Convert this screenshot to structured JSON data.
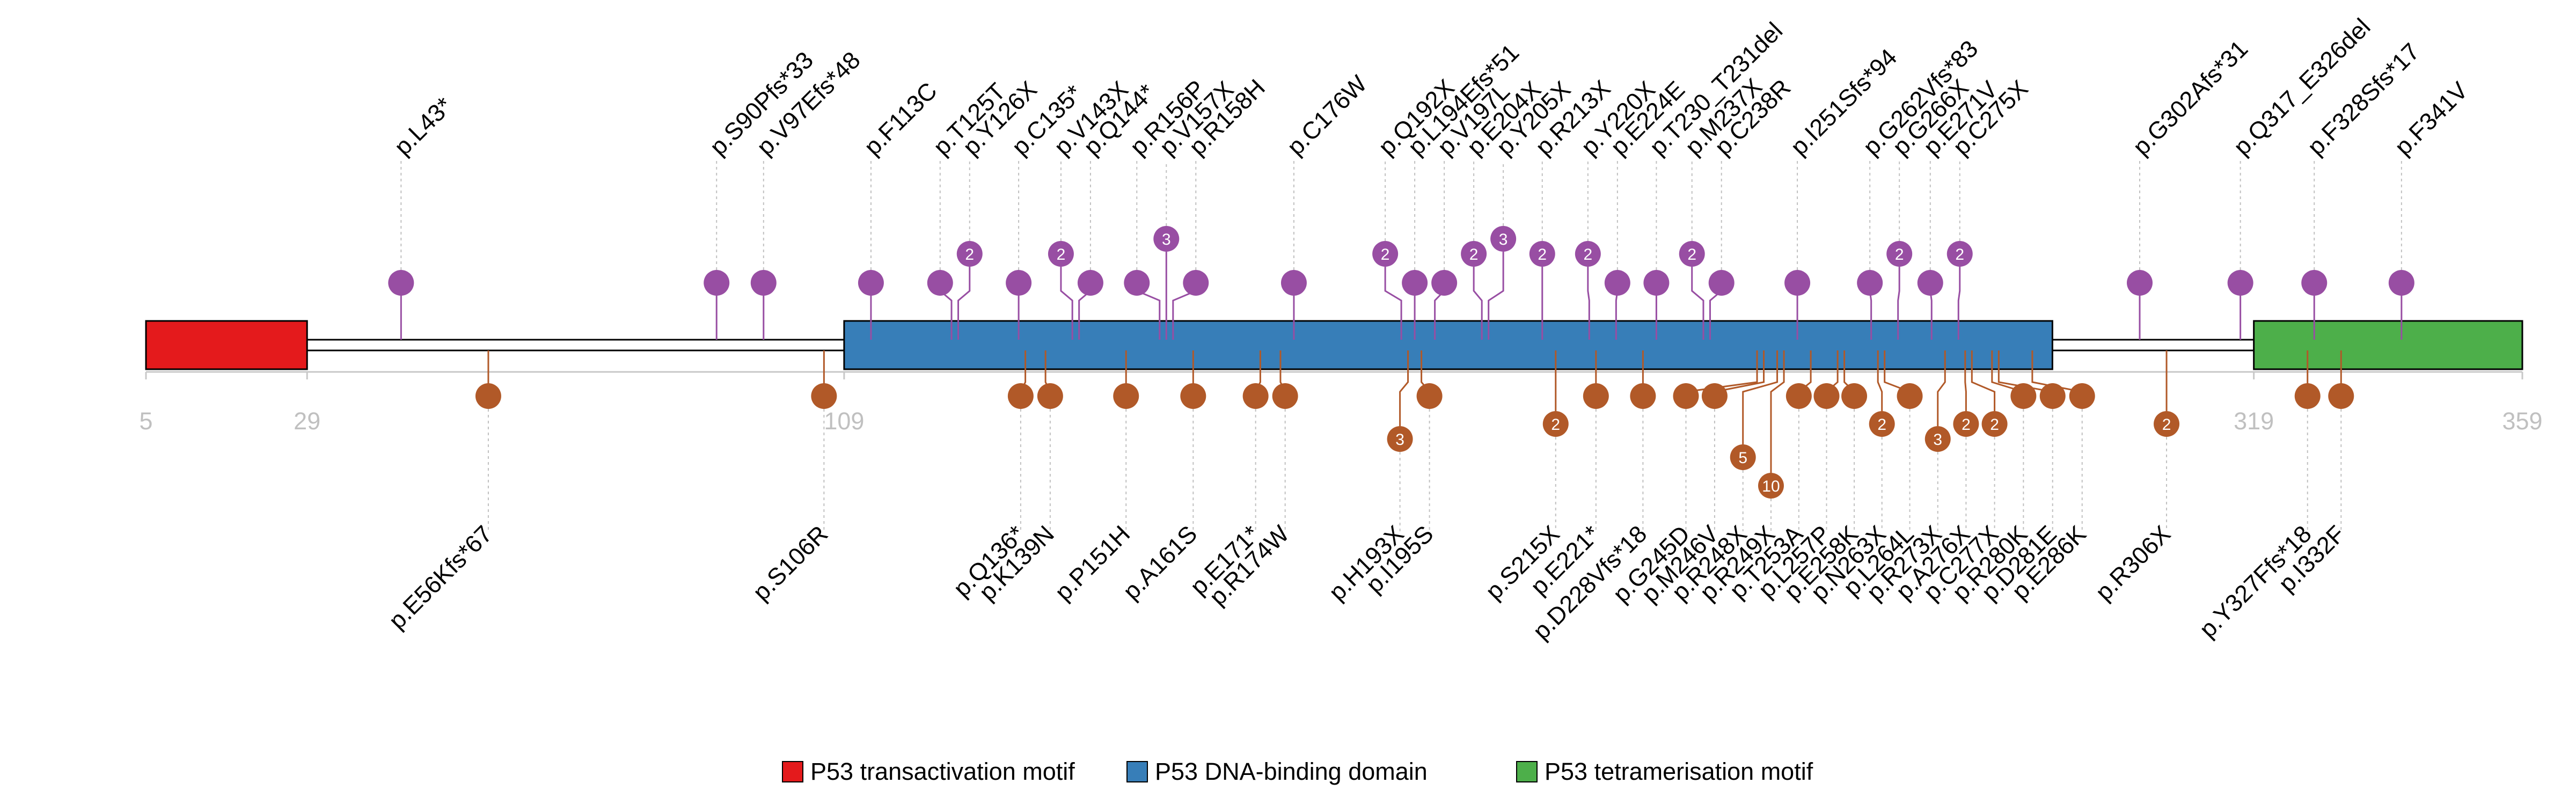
{
  "chart_data": {
    "type": "lollipop",
    "protein_range": [
      5,
      359
    ],
    "axis_ticks": [
      "5",
      "29",
      "109",
      "319",
      "359"
    ],
    "domains": [
      {
        "name": "P53 transactivation motif",
        "start": 5,
        "end": 29,
        "color": "#e41a1c"
      },
      {
        "name": "P53 DNA-binding domain",
        "start": 109,
        "end": 289,
        "color": "#377eb8"
      },
      {
        "name": "P53 tetramerisation motif",
        "start": 319,
        "end": 359,
        "color": "#4daf4a"
      }
    ],
    "top_series": {
      "color": "#984ea3",
      "mutations": [
        {
          "pos": 43,
          "count": 1,
          "label": "p.L43*"
        },
        {
          "pos": 90,
          "count": 1,
          "label": "p.S90Pfs*33"
        },
        {
          "pos": 97,
          "count": 1,
          "label": "p.V97Efs*48"
        },
        {
          "pos": 113,
          "count": 1,
          "label": "p.F113C"
        },
        {
          "pos": 125,
          "count": 1,
          "label": "p.T125T"
        },
        {
          "pos": 126,
          "count": 2,
          "label": "p.Y126X"
        },
        {
          "pos": 135,
          "count": 1,
          "label": "p.C135*"
        },
        {
          "pos": 143,
          "count": 2,
          "label": "p.V143X"
        },
        {
          "pos": 144,
          "count": 1,
          "label": "p.Q144*"
        },
        {
          "pos": 156,
          "count": 1,
          "label": "p.R156P"
        },
        {
          "pos": 157,
          "count": 3,
          "label": "p.V157X"
        },
        {
          "pos": 158,
          "count": 1,
          "label": "p.R158H"
        },
        {
          "pos": 176,
          "count": 1,
          "label": "p.C176W"
        },
        {
          "pos": 192,
          "count": 2,
          "label": "p.Q192X"
        },
        {
          "pos": 194,
          "count": 1,
          "label": "p.L194Efs*51"
        },
        {
          "pos": 197,
          "count": 1,
          "label": "p.V197L"
        },
        {
          "pos": 204,
          "count": 2,
          "label": "p.E204X"
        },
        {
          "pos": 205,
          "count": 3,
          "label": "p.Y205X"
        },
        {
          "pos": 213,
          "count": 2,
          "label": "p.R213X"
        },
        {
          "pos": 220,
          "count": 2,
          "label": "p.Y220X"
        },
        {
          "pos": 224,
          "count": 1,
          "label": "p.E224E"
        },
        {
          "pos": 230,
          "count": 1,
          "label": "p.T230_T231del"
        },
        {
          "pos": 237,
          "count": 2,
          "label": "p.M237X"
        },
        {
          "pos": 238,
          "count": 1,
          "label": "p.C238R"
        },
        {
          "pos": 251,
          "count": 1,
          "label": "p.I251Sfs*94"
        },
        {
          "pos": 262,
          "count": 1,
          "label": "p.G262Vfs*83"
        },
        {
          "pos": 266,
          "count": 2,
          "label": "p.G266X"
        },
        {
          "pos": 271,
          "count": 1,
          "label": "p.E271V"
        },
        {
          "pos": 275,
          "count": 2,
          "label": "p.C275X"
        },
        {
          "pos": 302,
          "count": 1,
          "label": "p.G302Afs*31"
        },
        {
          "pos": 317,
          "count": 1,
          "label": "p.Q317_E326del"
        },
        {
          "pos": 328,
          "count": 1,
          "label": "p.F328Sfs*17"
        },
        {
          "pos": 341,
          "count": 1,
          "label": "p.F341V"
        }
      ]
    },
    "bottom_series": {
      "color": "#b15928",
      "mutations": [
        {
          "pos": 56,
          "count": 1,
          "label": "p.E56Kfs*67"
        },
        {
          "pos": 106,
          "count": 1,
          "label": "p.S106R"
        },
        {
          "pos": 136,
          "count": 1,
          "label": "p.Q136*"
        },
        {
          "pos": 139,
          "count": 1,
          "label": "p.K139N"
        },
        {
          "pos": 151,
          "count": 1,
          "label": "p.P151H"
        },
        {
          "pos": 161,
          "count": 1,
          "label": "p.A161S"
        },
        {
          "pos": 171,
          "count": 1,
          "label": "p.E171*"
        },
        {
          "pos": 174,
          "count": 1,
          "label": "p.R174W"
        },
        {
          "pos": 193,
          "count": 3,
          "label": "p.H193X"
        },
        {
          "pos": 195,
          "count": 1,
          "label": "p.I195S"
        },
        {
          "pos": 215,
          "count": 2,
          "label": "p.S215X"
        },
        {
          "pos": 221,
          "count": 1,
          "label": "p.E221*"
        },
        {
          "pos": 228,
          "count": 1,
          "label": "p.D228Vfs*18"
        },
        {
          "pos": 245,
          "count": 1,
          "label": "p.G245D"
        },
        {
          "pos": 246,
          "count": 1,
          "label": "p.M246V"
        },
        {
          "pos": 248,
          "count": 5,
          "label": "p.R248X"
        },
        {
          "pos": 249,
          "count": 10,
          "label": "p.R249X"
        },
        {
          "pos": 253,
          "count": 1,
          "label": "p.T253A"
        },
        {
          "pos": 257,
          "count": 1,
          "label": "p.L257P"
        },
        {
          "pos": 258,
          "count": 1,
          "label": "p.E258K"
        },
        {
          "pos": 263,
          "count": 2,
          "label": "p.N263X"
        },
        {
          "pos": 264,
          "count": 1,
          "label": "p.L264L"
        },
        {
          "pos": 273,
          "count": 3,
          "label": "p.R273X"
        },
        {
          "pos": 276,
          "count": 2,
          "label": "p.A276X"
        },
        {
          "pos": 277,
          "count": 2,
          "label": "p.C277X"
        },
        {
          "pos": 280,
          "count": 1,
          "label": "p.R280K"
        },
        {
          "pos": 281,
          "count": 1,
          "label": "p.D281E"
        },
        {
          "pos": 286,
          "count": 1,
          "label": "p.E286K"
        },
        {
          "pos": 306,
          "count": 2,
          "label": "p.R306X"
        },
        {
          "pos": 327,
          "count": 1,
          "label": "p.Y327Ffs*18"
        },
        {
          "pos": 332,
          "count": 1,
          "label": "p.I332F"
        }
      ]
    }
  }
}
